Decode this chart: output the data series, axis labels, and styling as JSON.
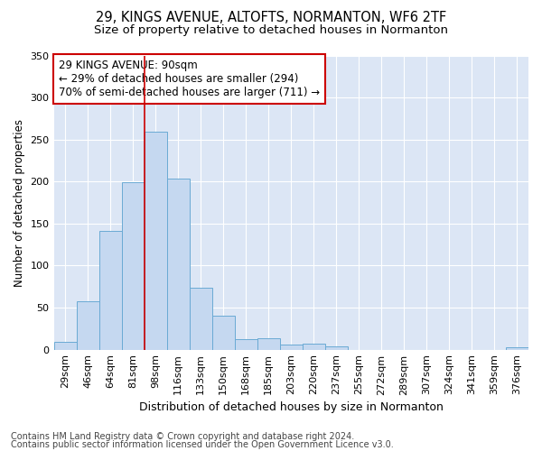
{
  "title1": "29, KINGS AVENUE, ALTOFTS, NORMANTON, WF6 2TF",
  "title2": "Size of property relative to detached houses in Normanton",
  "xlabel": "Distribution of detached houses by size in Normanton",
  "ylabel": "Number of detached properties",
  "categories": [
    "29sqm",
    "46sqm",
    "64sqm",
    "81sqm",
    "98sqm",
    "116sqm",
    "133sqm",
    "150sqm",
    "168sqm",
    "185sqm",
    "203sqm",
    "220sqm",
    "237sqm",
    "255sqm",
    "272sqm",
    "289sqm",
    "307sqm",
    "324sqm",
    "341sqm",
    "359sqm",
    "376sqm"
  ],
  "values": [
    9,
    57,
    141,
    199,
    259,
    203,
    74,
    40,
    12,
    13,
    6,
    7,
    4,
    0,
    0,
    0,
    0,
    0,
    0,
    0,
    3
  ],
  "bar_color": "#c5d8f0",
  "bar_edge_color": "#6aaad4",
  "vline_x": 4.0,
  "vline_color": "#cc0000",
  "annotation_text": "29 KINGS AVENUE: 90sqm\n← 29% of detached houses are smaller (294)\n70% of semi-detached houses are larger (711) →",
  "annotation_box_color": "#ffffff",
  "annotation_box_edge": "#cc0000",
  "ylim": [
    0,
    350
  ],
  "yticks": [
    0,
    50,
    100,
    150,
    200,
    250,
    300,
    350
  ],
  "fig_bg_color": "#ffffff",
  "plot_bg_color": "#dce6f5",
  "footer1": "Contains HM Land Registry data © Crown copyright and database right 2024.",
  "footer2": "Contains public sector information licensed under the Open Government Licence v3.0.",
  "title1_fontsize": 10.5,
  "title2_fontsize": 9.5,
  "xlabel_fontsize": 9,
  "ylabel_fontsize": 8.5,
  "tick_fontsize": 8,
  "ann_fontsize": 8.5,
  "footer_fontsize": 7
}
